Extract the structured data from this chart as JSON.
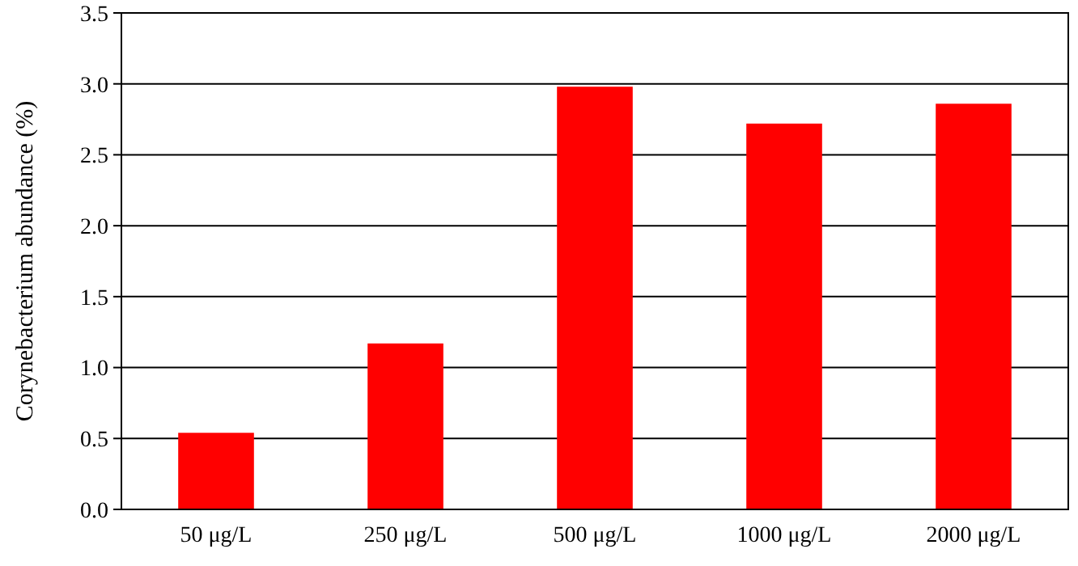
{
  "chart_data": {
    "type": "bar",
    "ylabel": "Corynebacterium abundance  (%)",
    "categories": [
      "50 μg/L",
      "250 μg/L",
      "500 μg/L",
      "1000 μg/L",
      "2000 μg/L"
    ],
    "values": [
      0.54,
      1.17,
      2.98,
      2.72,
      2.86
    ],
    "color": "#ff0000",
    "ylim": [
      0,
      3.5
    ],
    "yticks": [
      {
        "value": 0,
        "label": "0.0"
      },
      {
        "value": 0.5,
        "label": "0.5"
      },
      {
        "value": 1,
        "label": "1.0"
      },
      {
        "value": 1.5,
        "label": "1.5"
      },
      {
        "value": 2,
        "label": "2.0"
      },
      {
        "value": 2.5,
        "label": "2.5"
      },
      {
        "value": 3,
        "label": "3.0"
      },
      {
        "value": 3.5,
        "label": "3.5"
      }
    ],
    "grid": "y"
  }
}
